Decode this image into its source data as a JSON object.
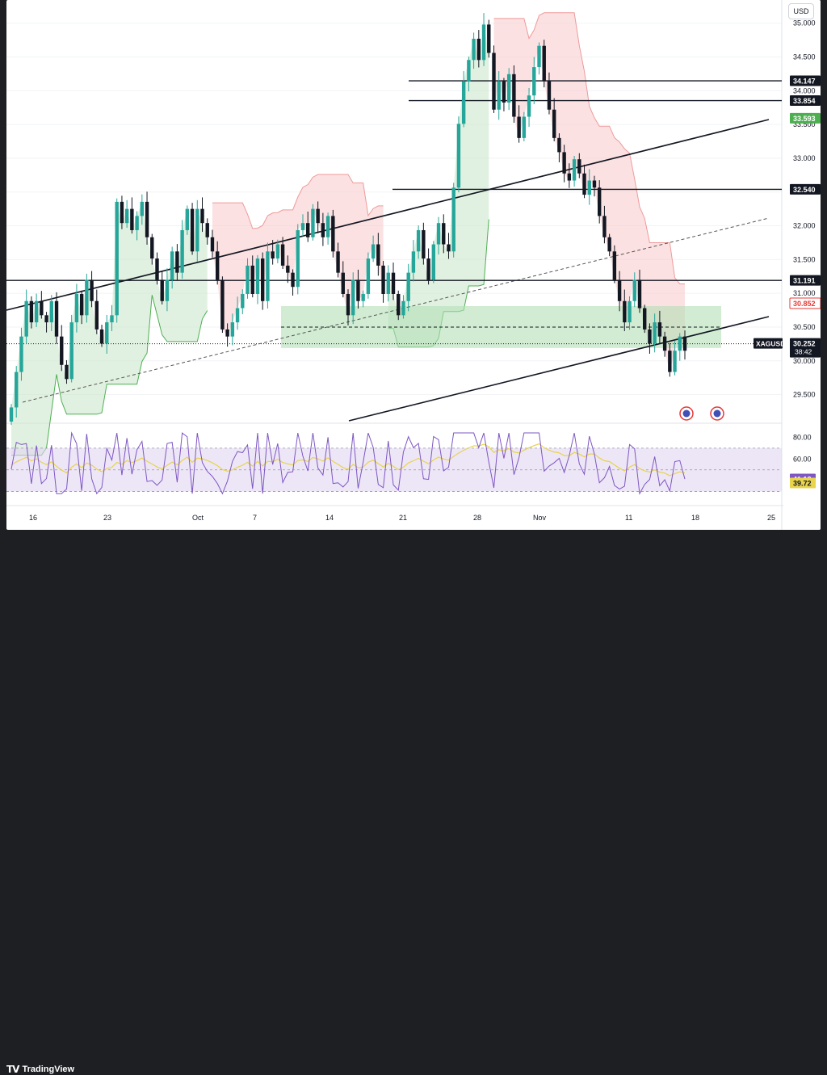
{
  "header": {
    "currency": "USD"
  },
  "footer": {
    "brand": "TradingView"
  },
  "colors": {
    "up": "#26a69a",
    "down": "#131722",
    "resistance_fill": "#f7c9cb",
    "support_fill": "#c8e6c9",
    "zone": "#b2dfb6",
    "rsi": "#7e57c2",
    "rsi_ma": "#e8d44d",
    "rsi_band": "#e1d5f1"
  },
  "chart_data": [
    {
      "type": "candlestick",
      "symbol": "XAGUSD",
      "countdown": "38:42",
      "currency": "USD",
      "y_ticks": [
        "35.000",
        "34.500",
        "34.000",
        "33.500",
        "33.000",
        "32.500",
        "32.000",
        "31.500",
        "31.000",
        "30.500",
        "30.000",
        "29.500"
      ],
      "ylim": [
        29.1,
        35.2
      ],
      "x_ticks": [
        "16",
        "23",
        "Oct",
        "7",
        "14",
        "21",
        "28",
        "Nov",
        "11",
        "18",
        "25"
      ],
      "price_tags": [
        {
          "label": "34.147",
          "value": 34.147,
          "style": "black"
        },
        {
          "label": "33.854",
          "value": 33.854,
          "style": "black"
        },
        {
          "label": "33.593",
          "value": 33.593,
          "style": "green"
        },
        {
          "label": "32.540",
          "value": 32.54,
          "style": "black"
        },
        {
          "label": "31.191",
          "value": 31.191,
          "style": "black"
        },
        {
          "label": "30.852",
          "value": 30.852,
          "style": "red"
        }
      ],
      "last_price": 30.252,
      "horizontal_levels": [
        34.147,
        33.854,
        32.54,
        31.191
      ],
      "support_zone": [
        30.19,
        30.81
      ],
      "zone_midline": 30.5,
      "ohlc_path": [
        [
          9.2,
          9.4
        ],
        [
          9.4,
          9.9
        ],
        [
          9.9,
          10.4
        ],
        [
          10.4,
          10.9
        ],
        [
          10.9,
          10.6
        ],
        [
          10.6,
          10.9
        ],
        [
          10.9,
          10.7
        ],
        [
          10.7,
          10.6
        ],
        [
          10.6,
          10.9
        ],
        [
          10.9,
          10.4
        ],
        [
          10.4,
          10.0
        ],
        [
          10.0,
          9.8
        ],
        [
          9.8,
          10.6
        ],
        [
          10.6,
          11.0
        ],
        [
          11.0,
          10.7
        ],
        [
          10.7,
          11.2
        ],
        [
          11.2,
          10.9
        ],
        [
          10.9,
          10.5
        ],
        [
          10.5,
          10.3
        ],
        [
          10.3,
          10.6
        ],
        [
          10.6,
          10.7
        ],
        [
          10.7,
          12.3
        ],
        [
          12.3,
          12.0
        ],
        [
          12.0,
          12.2
        ],
        [
          12.2,
          11.9
        ],
        [
          11.9,
          12.1
        ],
        [
          12.1,
          12.3
        ],
        [
          12.3,
          11.8
        ],
        [
          11.8,
          11.5
        ],
        [
          11.5,
          11.2
        ],
        [
          11.2,
          10.9
        ],
        [
          10.9,
          11.2
        ],
        [
          11.2,
          11.6
        ],
        [
          11.6,
          11.3
        ],
        [
          11.3,
          11.9
        ],
        [
          11.9,
          12.2
        ],
        [
          12.2,
          11.6
        ],
        [
          11.6,
          12.2
        ],
        [
          12.2,
          12.0
        ],
        [
          12.0,
          11.8
        ],
        [
          11.8,
          11.6
        ],
        [
          11.6,
          11.2
        ],
        [
          11.2,
          10.5
        ],
        [
          10.5,
          10.4
        ],
        [
          10.4,
          10.6
        ],
        [
          10.6,
          10.8
        ],
        [
          10.8,
          11.0
        ],
        [
          11.0,
          11.4
        ],
        [
          11.4,
          11.0
        ],
        [
          11.0,
          11.5
        ],
        [
          11.5,
          10.9
        ],
        [
          10.9,
          11.6
        ],
        [
          11.6,
          11.5
        ],
        [
          11.5,
          11.7
        ],
        [
          11.7,
          11.4
        ],
        [
          11.4,
          11.3
        ],
        [
          11.3,
          11.1
        ],
        [
          11.1,
          11.9
        ],
        [
          11.9,
          12.0
        ],
        [
          12.0,
          11.8
        ],
        [
          11.8,
          12.2
        ],
        [
          12.2,
          12.0
        ],
        [
          12.0,
          11.8
        ],
        [
          11.8,
          12.1
        ],
        [
          12.1,
          11.6
        ],
        [
          11.6,
          11.3
        ],
        [
          11.3,
          11.0
        ],
        [
          11.0,
          10.7
        ],
        [
          10.7,
          11.2
        ],
        [
          11.2,
          10.9
        ],
        [
          10.9,
          11.0
        ],
        [
          11.0,
          11.5
        ],
        [
          11.5,
          11.7
        ],
        [
          11.7,
          11.4
        ],
        [
          11.4,
          11.0
        ],
        [
          11.0,
          11.3
        ],
        [
          11.3,
          11.0
        ],
        [
          11.0,
          10.7
        ],
        [
          10.7,
          10.9
        ],
        [
          10.9,
          11.3
        ],
        [
          11.3,
          11.6
        ],
        [
          11.6,
          11.9
        ],
        [
          11.9,
          11.5
        ],
        [
          11.5,
          11.2
        ],
        [
          11.2,
          11.7
        ],
        [
          11.7,
          12.0
        ],
        [
          12.0,
          11.7
        ],
        [
          11.7,
          11.6
        ],
        [
          11.6,
          12.5
        ],
        [
          12.5,
          13.4
        ],
        [
          13.4,
          14.0
        ],
        [
          14.0,
          14.3
        ],
        [
          14.3,
          14.6
        ],
        [
          14.6,
          14.3
        ],
        [
          14.3,
          14.8
        ],
        [
          14.8,
          14.4
        ],
        [
          14.4,
          13.6
        ],
        [
          13.6,
          14.0
        ],
        [
          14.0,
          13.7
        ],
        [
          13.7,
          14.1
        ],
        [
          14.1,
          13.5
        ],
        [
          13.5,
          13.2
        ],
        [
          13.2,
          13.5
        ],
        [
          13.5,
          13.8
        ],
        [
          13.8,
          14.2
        ],
        [
          14.2,
          14.5
        ],
        [
          14.5,
          14.0
        ],
        [
          14.0,
          13.6
        ],
        [
          13.6,
          13.2
        ],
        [
          13.2,
          13.0
        ],
        [
          13.0,
          12.7
        ],
        [
          12.7,
          12.6
        ],
        [
          12.6,
          12.9
        ],
        [
          12.9,
          12.7
        ],
        [
          12.7,
          12.4
        ],
        [
          12.4,
          12.6
        ],
        [
          12.6,
          12.5
        ],
        [
          12.5,
          12.1
        ],
        [
          12.1,
          11.8
        ],
        [
          11.8,
          11.6
        ],
        [
          11.6,
          11.2
        ],
        [
          11.2,
          10.9
        ],
        [
          10.9,
          10.6
        ],
        [
          10.6,
          10.9
        ],
        [
          10.9,
          11.2
        ],
        [
          11.2,
          10.8
        ],
        [
          10.8,
          10.5
        ],
        [
          10.5,
          10.3
        ],
        [
          10.3,
          10.6
        ],
        [
          10.6,
          10.4
        ],
        [
          10.4,
          10.2
        ],
        [
          10.2,
          9.9
        ],
        [
          9.9,
          10.2
        ],
        [
          10.2,
          10.4
        ],
        [
          10.4,
          10.2
        ]
      ],
      "rsi": {
        "y_ticks": [
          "80.00",
          "60.00"
        ],
        "ylim": [
          20,
          90
        ],
        "rsi_value": "41.18",
        "ma_value": "39.72",
        "band": [
          30,
          70
        ]
      }
    }
  ]
}
